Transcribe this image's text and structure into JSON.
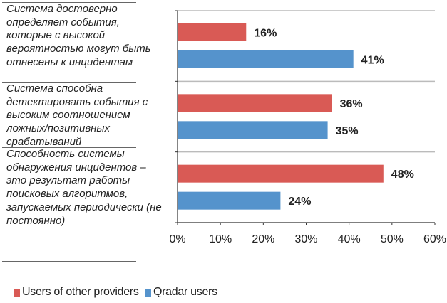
{
  "chart_data": {
    "type": "bar",
    "orientation": "horizontal",
    "categories": [
      "Система достоверно определяет события, которые с высокой вероятностью могут быть отнесены к инцидентам",
      "Система способна детектировать события с высоким соотношением ложных/позитивных срабатываний",
      "Способность системы обнаружения инцидентов – это результат работы поисковых алгоритмов, запускаемых периодически (не постоянно)"
    ],
    "series": [
      {
        "name": "Users of other providers",
        "color": "#d95a55",
        "values": [
          16,
          36,
          48
        ],
        "labels": [
          "16%",
          "36%",
          "48%"
        ]
      },
      {
        "name": "Qradar users",
        "color": "#5593cc",
        "values": [
          41,
          35,
          24
        ],
        "labels": [
          "41%",
          "35%",
          "24%"
        ]
      }
    ],
    "xlim": [
      0,
      60
    ],
    "xticks": [
      "0%",
      "10%",
      "20%",
      "30%",
      "40%",
      "50%",
      "60%"
    ],
    "grid": true,
    "legend": "bottom-left"
  }
}
